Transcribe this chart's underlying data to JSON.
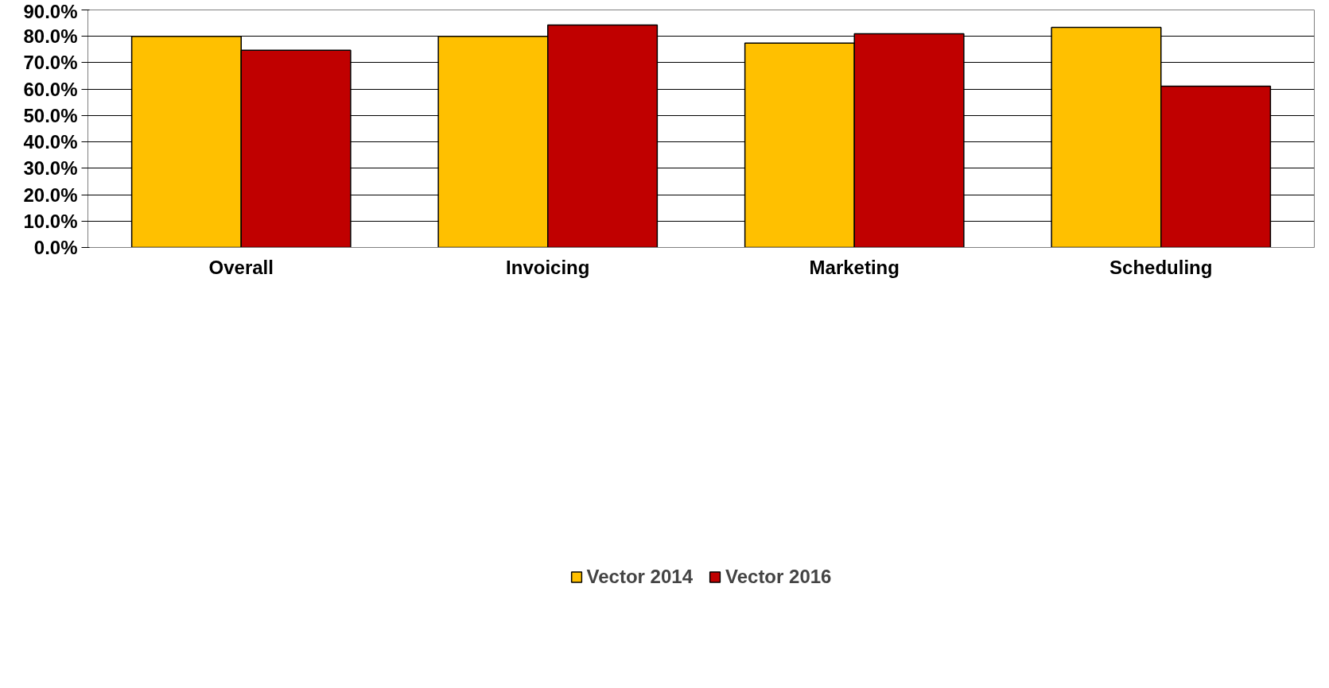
{
  "chart_data": {
    "type": "bar",
    "categories": [
      "Overall",
      "Invoicing",
      "Marketing",
      "Scheduling"
    ],
    "series": [
      {
        "name": "Vector 2014",
        "color": "#ffc000",
        "values": [
          80.0,
          80.0,
          77.4,
          83.4
        ]
      },
      {
        "name": "Vector 2016",
        "color": "#c00000",
        "values": [
          74.7,
          84.3,
          81.0,
          61.1
        ]
      }
    ],
    "ylim": [
      0,
      90
    ],
    "yticks": [
      {
        "value": 0,
        "label": "0.0%"
      },
      {
        "value": 10,
        "label": "10.0%"
      },
      {
        "value": 20,
        "label": "20.0%"
      },
      {
        "value": 30,
        "label": "30.0%"
      },
      {
        "value": 40,
        "label": "40.0%"
      },
      {
        "value": 50,
        "label": "50.0%"
      },
      {
        "value": 60,
        "label": "60.0%"
      },
      {
        "value": 70,
        "label": "70.0%"
      },
      {
        "value": 80,
        "label": "80.0%"
      },
      {
        "value": 90,
        "label": "90.0%"
      }
    ],
    "grid": "y",
    "legend": "bottom"
  }
}
